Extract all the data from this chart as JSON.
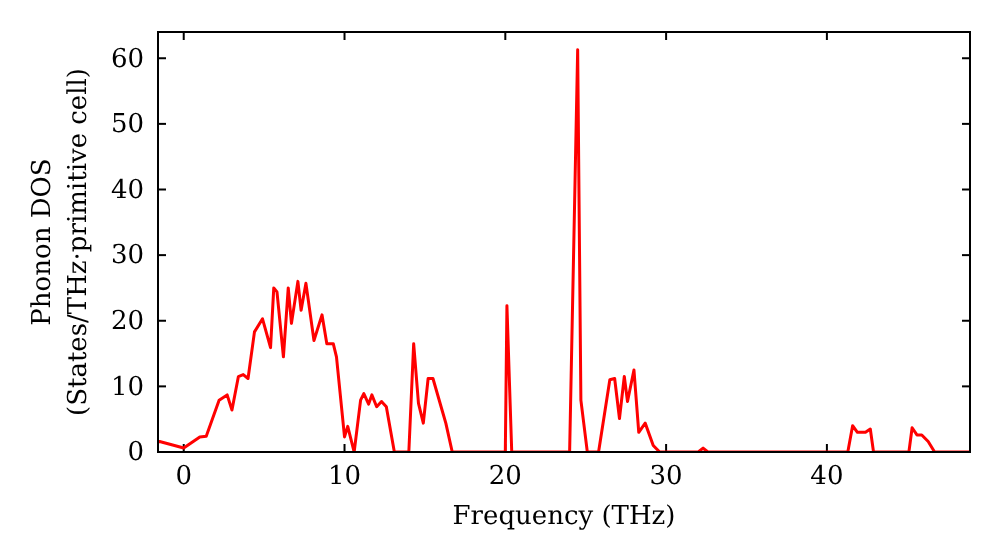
{
  "chart_data": {
    "type": "line",
    "xlabel": "Frequency (THz)",
    "ylabel": "Phonon DOS\n(States/THz·primitive cell)",
    "xlim": [
      -1.6,
      48.9
    ],
    "ylim": [
      0,
      64
    ],
    "xticks": [
      0,
      10,
      20,
      30,
      40
    ],
    "yticks": [
      0,
      10,
      20,
      30,
      40,
      50,
      60
    ],
    "grid": false,
    "marker": "none",
    "line_style": "solid",
    "series": [
      {
        "color": "#ff0000",
        "x": [
          -1.6,
          -1.5,
          0,
          1,
          1.4,
          2.2,
          2.7,
          3,
          3.4,
          3.7,
          4,
          4.4,
          4.9,
          5.4,
          5.6,
          5.8,
          6.2,
          6.5,
          6.7,
          7.1,
          7.3,
          7.6,
          8.1,
          8.6,
          8.9,
          9.3,
          9.5,
          10,
          10.2,
          10.6,
          11,
          11.2,
          11.5,
          11.7,
          12,
          12.3,
          12.6,
          13.1,
          14,
          14.3,
          14.6,
          14.9,
          15.2,
          15.5,
          16.1,
          16.3,
          16.7,
          20,
          20.1,
          20.4,
          24,
          24.5,
          24.7,
          25.1,
          25.8,
          26.5,
          26.8,
          27.1,
          27.4,
          27.6,
          28,
          28.3,
          28.7,
          29.2,
          29.6,
          32,
          32.3,
          32.6,
          41.3,
          41.6,
          41.9,
          42.4,
          42.7,
          42.9,
          45.1,
          45.3,
          45.6,
          45.9,
          46.3,
          46.7,
          48.9
        ],
        "values": [
          1.5,
          1.6,
          0.6,
          2.3,
          2.4,
          7.9,
          8.7,
          6.4,
          11.5,
          11.8,
          11.2,
          18.3,
          20.3,
          15.9,
          25,
          24.4,
          14.5,
          25,
          19.6,
          26,
          21.6,
          25.7,
          17,
          20.9,
          16.5,
          16.5,
          14.5,
          2.3,
          3.9,
          0,
          7.9,
          8.9,
          7.3,
          8.7,
          6.9,
          7.7,
          6.9,
          0,
          0,
          16.5,
          7.4,
          4.4,
          11.2,
          11.2,
          6.1,
          4.4,
          0,
          0,
          22.3,
          0,
          0,
          61.3,
          7.9,
          0,
          0,
          11,
          11.2,
          5.1,
          11.5,
          7.7,
          12.5,
          3,
          4.4,
          1,
          0,
          0,
          0.6,
          0,
          0,
          4,
          3,
          3,
          3.5,
          0,
          0,
          3.7,
          2.6,
          2.6,
          1.6,
          0,
          0
        ]
      }
    ]
  }
}
